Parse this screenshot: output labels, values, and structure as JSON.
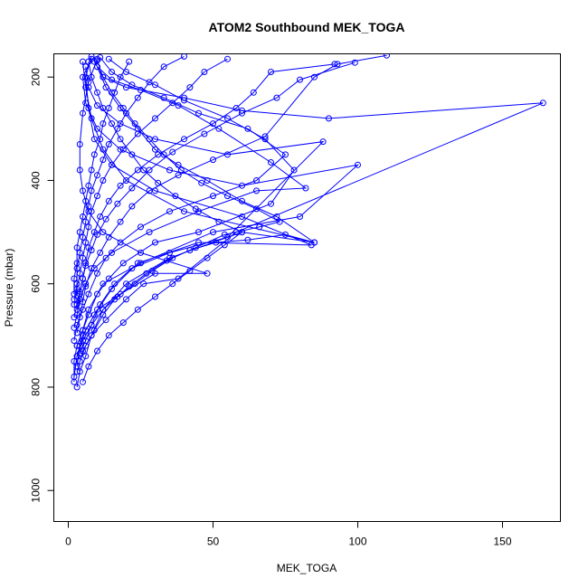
{
  "chart_data": {
    "type": "scatter",
    "title": "ATOM2 Southbound MEK_TOGA",
    "xlabel": "MEK_TOGA",
    "ylabel": "Pressure (mbar)",
    "xlim": [
      -5,
      170
    ],
    "ylim": [
      1060,
      155
    ],
    "y_reversed": true,
    "x_ticks": [
      0,
      50,
      100,
      150
    ],
    "y_ticks": [
      200,
      400,
      600,
      800,
      1000
    ],
    "grid": false,
    "legend": "none",
    "color": "#0000ff",
    "marker": "open-circle",
    "series": [
      {
        "values": [
          [
            3,
            800
          ],
          [
            4,
            770
          ],
          [
            6,
            740
          ],
          [
            8,
            700
          ],
          [
            12,
            650
          ],
          [
            20,
            600
          ],
          [
            35,
            550
          ],
          [
            60,
            500
          ],
          [
            85,
            520
          ],
          [
            40,
            460
          ],
          [
            20,
            400
          ],
          [
            12,
            340
          ],
          [
            8,
            280
          ],
          [
            6,
            220
          ],
          [
            5,
            170
          ]
        ]
      },
      {
        "values": [
          [
            2,
            780
          ],
          [
            3,
            740
          ],
          [
            5,
            700
          ],
          [
            9,
            660
          ],
          [
            15,
            610
          ],
          [
            24,
            560
          ],
          [
            45,
            520
          ],
          [
            84,
            525
          ],
          [
            60,
            470
          ],
          [
            30,
            420
          ],
          [
            15,
            370
          ],
          [
            9,
            320
          ],
          [
            7,
            260
          ],
          [
            6,
            200
          ],
          [
            8,
            160
          ]
        ]
      },
      {
        "values": [
          [
            3,
            760
          ],
          [
            4,
            720
          ],
          [
            6,
            690
          ],
          [
            10,
            650
          ],
          [
            18,
            620
          ],
          [
            30,
            580
          ],
          [
            48,
            580
          ],
          [
            25,
            540
          ],
          [
            12,
            500
          ],
          [
            7,
            460
          ],
          [
            5,
            420
          ],
          [
            4,
            380
          ],
          [
            4,
            330
          ],
          [
            5,
            270
          ],
          [
            7,
            210
          ],
          [
            10,
            165
          ]
        ]
      },
      {
        "values": [
          [
            2,
            790
          ],
          [
            2,
            750
          ],
          [
            3,
            720
          ],
          [
            5,
            690
          ],
          [
            7,
            650
          ],
          [
            12,
            600
          ],
          [
            25,
            560
          ],
          [
            50,
            500
          ],
          [
            80,
            470
          ],
          [
            100,
            370
          ],
          [
            60,
            410
          ],
          [
            35,
            380
          ],
          [
            18,
            340
          ],
          [
            10,
            300
          ],
          [
            6,
            250
          ],
          [
            5,
            200
          ],
          [
            8,
            165
          ]
        ]
      },
      {
        "values": [
          [
            4,
            735
          ],
          [
            6,
            710
          ],
          [
            8,
            680
          ],
          [
            11,
            640
          ],
          [
            16,
            600
          ],
          [
            22,
            570
          ],
          [
            35,
            540
          ],
          [
            55,
            510
          ],
          [
            88,
            325
          ],
          [
            55,
            350
          ],
          [
            30,
            320
          ],
          [
            18,
            290
          ],
          [
            10,
            255
          ],
          [
            7,
            220
          ],
          [
            6,
            180
          ]
        ]
      },
      {
        "values": [
          [
            3,
            770
          ],
          [
            5,
            730
          ],
          [
            8,
            700
          ],
          [
            13,
            670
          ],
          [
            20,
            630
          ],
          [
            26,
            600
          ],
          [
            38,
            590
          ],
          [
            58,
            500
          ],
          [
            164,
            250
          ],
          [
            90,
            280
          ],
          [
            60,
            265
          ],
          [
            40,
            240
          ],
          [
            20,
            220
          ],
          [
            12,
            200
          ],
          [
            9,
            170
          ]
        ]
      },
      {
        "values": [
          [
            2,
            685
          ],
          [
            3,
            660
          ],
          [
            4,
            630
          ],
          [
            6,
            600
          ],
          [
            9,
            570
          ],
          [
            15,
            540
          ],
          [
            28,
            500
          ],
          [
            45,
            460
          ],
          [
            65,
            420
          ],
          [
            82,
            415
          ],
          [
            70,
            365
          ],
          [
            52,
            300
          ],
          [
            38,
            255
          ],
          [
            25,
            225
          ],
          [
            15,
            205
          ],
          [
            10,
            180
          ]
        ]
      },
      {
        "values": [
          [
            3,
            720
          ],
          [
            5,
            690
          ],
          [
            7,
            660
          ],
          [
            10,
            620
          ],
          [
            14,
            590
          ],
          [
            19,
            560
          ],
          [
            30,
            520
          ],
          [
            45,
            500
          ],
          [
            70,
            445
          ],
          [
            78,
            380
          ],
          [
            68,
            320
          ],
          [
            55,
            280
          ],
          [
            40,
            245
          ],
          [
            30,
            215
          ],
          [
            20,
            190
          ],
          [
            14,
            165
          ]
        ]
      },
      {
        "values": [
          [
            2,
            710
          ],
          [
            3,
            680
          ],
          [
            5,
            650
          ],
          [
            7,
            620
          ],
          [
            10,
            580
          ],
          [
            13,
            550
          ],
          [
            18,
            520
          ],
          [
            25,
            490
          ],
          [
            35,
            460
          ],
          [
            50,
            430
          ],
          [
            65,
            400
          ],
          [
            75,
            350
          ],
          [
            62,
            300
          ],
          [
            45,
            270
          ],
          [
            33,
            240
          ],
          [
            22,
            215
          ],
          [
            15,
            190
          ],
          [
            11,
            162
          ]
        ]
      },
      {
        "values": [
          [
            3,
            695
          ],
          [
            4,
            665
          ],
          [
            5,
            635
          ],
          [
            6,
            605
          ],
          [
            8,
            570
          ],
          [
            11,
            540
          ],
          [
            14,
            510
          ],
          [
            18,
            480
          ],
          [
            22,
            450
          ],
          [
            28,
            420
          ],
          [
            38,
            390
          ],
          [
            50,
            360
          ],
          [
            68,
            315
          ],
          [
            85,
            200
          ],
          [
            93,
            175
          ],
          [
            110,
            158
          ]
        ]
      },
      {
        "values": [
          [
            2,
            665
          ],
          [
            3,
            640
          ],
          [
            4,
            615
          ],
          [
            5,
            590
          ],
          [
            6,
            565
          ],
          [
            8,
            535
          ],
          [
            10,
            505
          ],
          [
            13,
            475
          ],
          [
            17,
            445
          ],
          [
            22,
            415
          ],
          [
            28,
            380
          ],
          [
            36,
            345
          ],
          [
            47,
            310
          ],
          [
            60,
            270
          ],
          [
            72,
            240
          ],
          [
            80,
            205
          ],
          [
            99,
            172
          ]
        ]
      },
      {
        "values": [
          [
            3,
            650
          ],
          [
            4,
            620
          ],
          [
            5,
            590
          ],
          [
            6,
            560
          ],
          [
            7,
            530
          ],
          [
            9,
            500
          ],
          [
            11,
            470
          ],
          [
            14,
            440
          ],
          [
            18,
            410
          ],
          [
            24,
            380
          ],
          [
            31,
            350
          ],
          [
            40,
            320
          ],
          [
            50,
            290
          ],
          [
            58,
            260
          ],
          [
            64,
            230
          ],
          [
            70,
            190
          ],
          [
            92,
            175
          ]
        ]
      },
      {
        "values": [
          [
            2,
            640
          ],
          [
            3,
            610
          ],
          [
            4,
            580
          ],
          [
            5,
            550
          ],
          [
            6,
            520
          ],
          [
            7,
            490
          ],
          [
            8,
            460
          ],
          [
            10,
            430
          ],
          [
            12,
            400
          ],
          [
            15,
            370
          ],
          [
            19,
            340
          ],
          [
            24,
            310
          ],
          [
            30,
            280
          ],
          [
            36,
            250
          ],
          [
            42,
            220
          ],
          [
            47,
            190
          ],
          [
            55,
            165
          ]
        ]
      },
      {
        "values": [
          [
            2,
            630
          ],
          [
            3,
            600
          ],
          [
            3,
            570
          ],
          [
            4,
            540
          ],
          [
            5,
            510
          ],
          [
            6,
            480
          ],
          [
            7,
            450
          ],
          [
            8,
            420
          ],
          [
            10,
            390
          ],
          [
            12,
            360
          ],
          [
            14,
            330
          ],
          [
            17,
            300
          ],
          [
            20,
            270
          ],
          [
            24,
            240
          ],
          [
            28,
            210
          ],
          [
            33,
            180
          ],
          [
            40,
            160
          ]
        ]
      },
      {
        "values": [
          [
            2,
            620
          ],
          [
            2,
            590
          ],
          [
            3,
            560
          ],
          [
            3,
            530
          ],
          [
            4,
            500
          ],
          [
            5,
            470
          ],
          [
            6,
            440
          ],
          [
            7,
            410
          ],
          [
            8,
            380
          ],
          [
            9,
            350
          ],
          [
            11,
            320
          ],
          [
            12,
            290
          ],
          [
            14,
            260
          ],
          [
            16,
            230
          ],
          [
            18,
            200
          ],
          [
            21,
            170
          ]
        ]
      },
      {
        "values": [
          [
            4,
            750
          ],
          [
            6,
            720
          ],
          [
            9,
            690
          ],
          [
            12,
            660
          ],
          [
            16,
            630
          ],
          [
            21,
            605
          ],
          [
            27,
            580
          ],
          [
            34,
            555
          ],
          [
            42,
            535
          ],
          [
            51,
            520
          ],
          [
            62,
            515
          ],
          [
            75,
            505
          ],
          [
            85,
            520
          ],
          [
            72,
            470
          ],
          [
            60,
            440
          ],
          [
            48,
            400
          ],
          [
            38,
            370
          ],
          [
            30,
            340
          ],
          [
            24,
            300
          ],
          [
            18,
            260
          ],
          [
            13,
            220
          ],
          [
            10,
            180
          ]
        ]
      },
      {
        "values": [
          [
            3,
            740
          ],
          [
            5,
            710
          ],
          [
            8,
            680
          ],
          [
            12,
            650
          ],
          [
            17,
            625
          ],
          [
            23,
            600
          ],
          [
            29,
            575
          ],
          [
            36,
            550
          ],
          [
            44,
            530
          ],
          [
            54,
            505
          ],
          [
            66,
            490
          ],
          [
            73,
            480
          ],
          [
            65,
            455
          ],
          [
            55,
            430
          ],
          [
            46,
            405
          ],
          [
            39,
            380
          ],
          [
            33,
            350
          ],
          [
            28,
            320
          ],
          [
            23,
            290
          ],
          [
            19,
            260
          ],
          [
            15,
            230
          ],
          [
            12,
            200
          ],
          [
            10,
            168
          ]
        ]
      },
      {
        "values": [
          [
            5,
            790
          ],
          [
            7,
            760
          ],
          [
            10,
            730
          ],
          [
            14,
            700
          ],
          [
            19,
            675
          ],
          [
            24,
            650
          ],
          [
            30,
            625
          ],
          [
            36,
            600
          ],
          [
            42,
            575
          ],
          [
            48,
            550
          ],
          [
            54,
            525
          ],
          [
            60,
            500
          ],
          [
            52,
            480
          ],
          [
            44,
            455
          ],
          [
            37,
            430
          ],
          [
            31,
            405
          ],
          [
            26,
            380
          ],
          [
            22,
            350
          ],
          [
            18,
            320
          ],
          [
            15,
            290
          ],
          [
            12,
            260
          ],
          [
            10,
            230
          ],
          [
            8,
            200
          ],
          [
            7,
            170
          ]
        ]
      }
    ]
  }
}
